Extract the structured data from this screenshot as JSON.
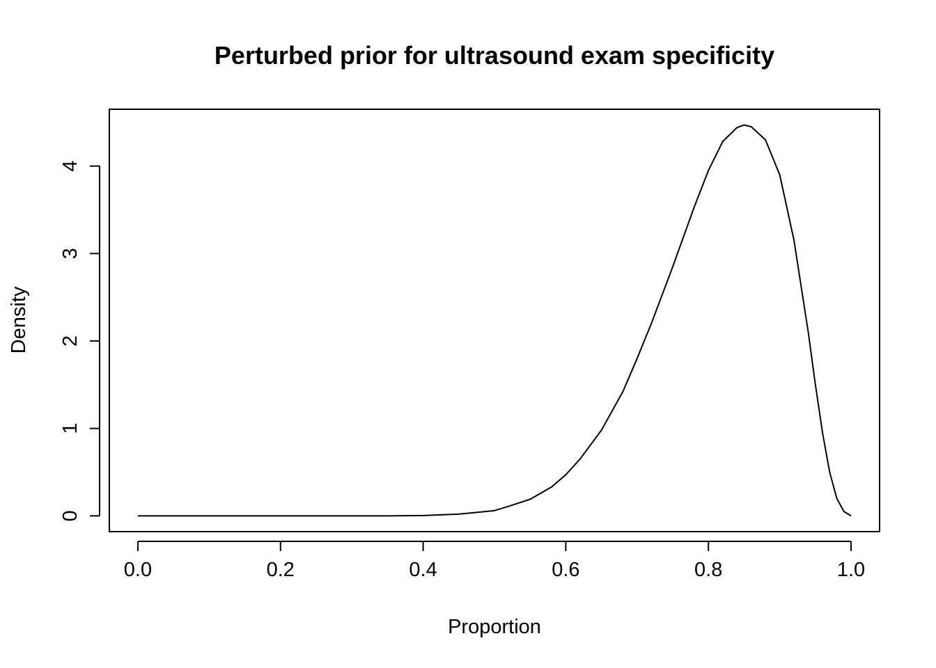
{
  "chart_data": {
    "type": "line",
    "title": "Perturbed prior for ultrasound exam specificity",
    "xlabel": "Proportion",
    "ylabel": "Density",
    "xlim": [
      -0.04,
      1.04
    ],
    "ylim": [
      -0.18,
      4.65
    ],
    "x_ticks": [
      0.0,
      0.2,
      0.4,
      0.6,
      0.8,
      1.0
    ],
    "x_tick_labels": [
      "0.0",
      "0.2",
      "0.4",
      "0.6",
      "0.8",
      "1.0"
    ],
    "y_ticks": [
      0,
      1,
      2,
      3,
      4
    ],
    "y_tick_labels": [
      "0",
      "1",
      "2",
      "3",
      "4"
    ],
    "grid": false,
    "legend": "none",
    "line_color": "#000000",
    "series": [
      {
        "x": [
          0.0,
          0.05,
          0.1,
          0.15,
          0.2,
          0.25,
          0.3,
          0.35,
          0.4,
          0.45,
          0.5,
          0.52,
          0.55,
          0.58,
          0.6,
          0.62,
          0.65,
          0.68,
          0.7,
          0.72,
          0.75,
          0.78,
          0.8,
          0.82,
          0.84,
          0.85,
          0.86,
          0.88,
          0.9,
          0.92,
          0.94,
          0.95,
          0.96,
          0.97,
          0.98,
          0.99,
          1.0
        ],
        "y": [
          0.0,
          0.0,
          0.0,
          0.0,
          0.0,
          0.0,
          0.0,
          0.0,
          0.004,
          0.02,
          0.06,
          0.11,
          0.19,
          0.33,
          0.47,
          0.65,
          0.98,
          1.42,
          1.8,
          2.2,
          2.85,
          3.53,
          3.95,
          4.28,
          4.44,
          4.47,
          4.45,
          4.3,
          3.9,
          3.15,
          2.1,
          1.5,
          0.95,
          0.5,
          0.2,
          0.05,
          0.0
        ]
      }
    ]
  }
}
